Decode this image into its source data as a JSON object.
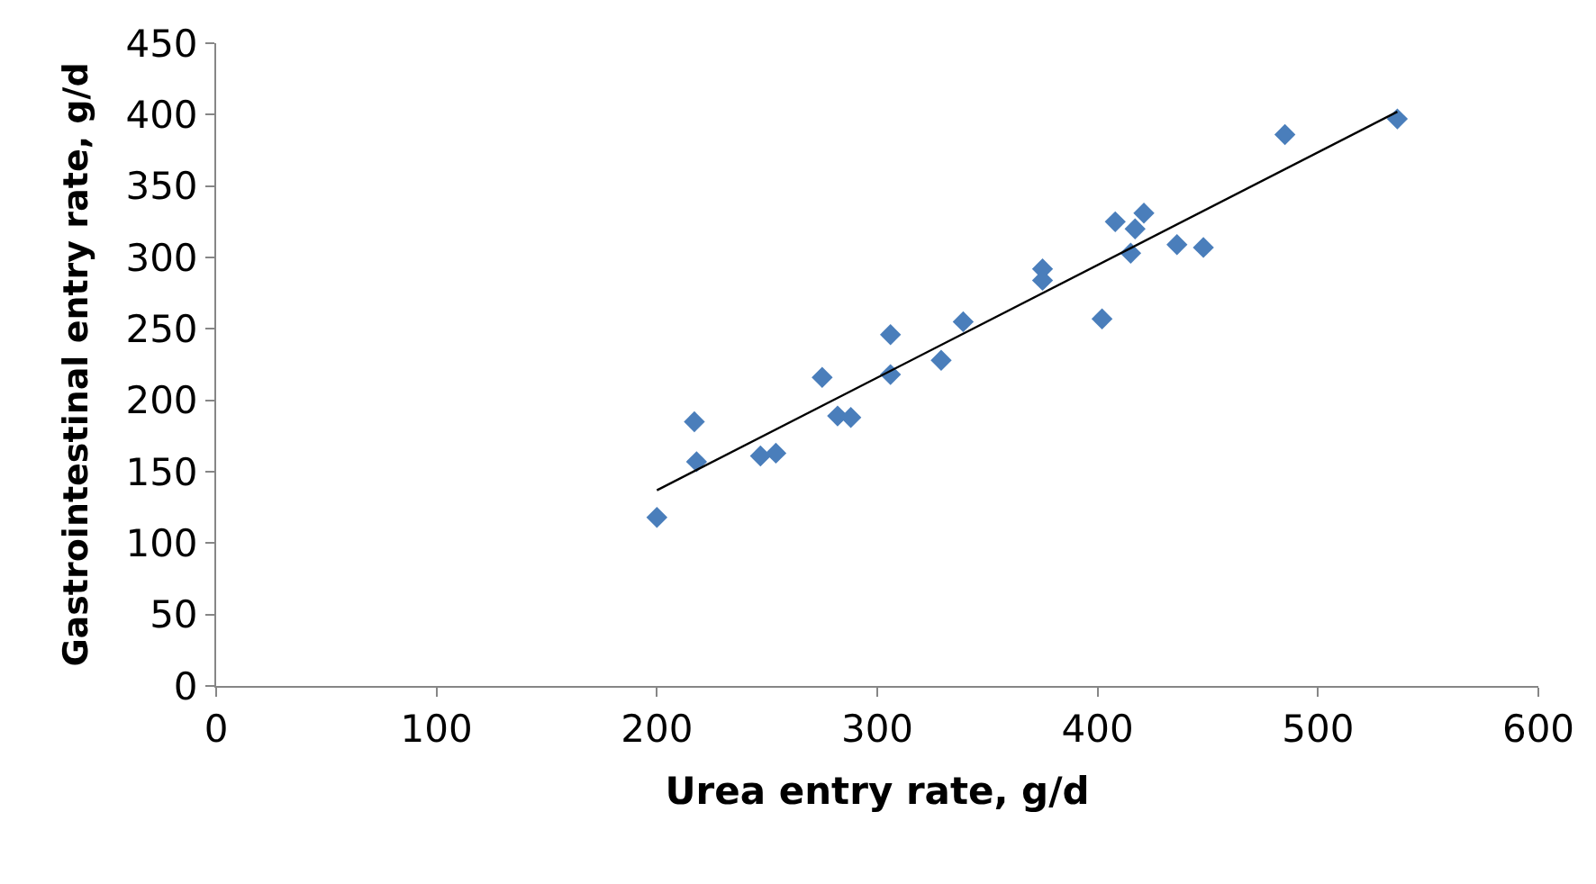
{
  "chart_data": {
    "type": "scatter",
    "xlabel": "Urea entry rate, g/d",
    "ylabel": "Gastrointestinal entry rate, g/d",
    "xlim": [
      0,
      600
    ],
    "xticks": [
      0,
      100,
      200,
      300,
      400,
      500,
      600
    ],
    "ylim": [
      0,
      450
    ],
    "yticks": [
      0,
      50,
      100,
      150,
      200,
      250,
      300,
      350,
      400,
      450
    ],
    "grid": false,
    "legend": false,
    "series": [
      {
        "marker": "diamond",
        "color": "#4a7ebb",
        "x": [
          200,
          217,
          218,
          247,
          254,
          275,
          282,
          288,
          306,
          306,
          329,
          339,
          375,
          375,
          402,
          408,
          415,
          417,
          421,
          436,
          448,
          485,
          536
        ],
        "values": [
          118,
          185,
          157,
          161,
          163,
          216,
          189,
          188,
          246,
          218,
          228,
          255,
          292,
          284,
          257,
          325,
          303,
          320,
          331,
          309,
          307,
          386,
          397
        ]
      },
      {
        "type": "line",
        "color": "#000000",
        "x": [
          200,
          536
        ],
        "values": [
          137,
          402
        ]
      }
    ]
  }
}
